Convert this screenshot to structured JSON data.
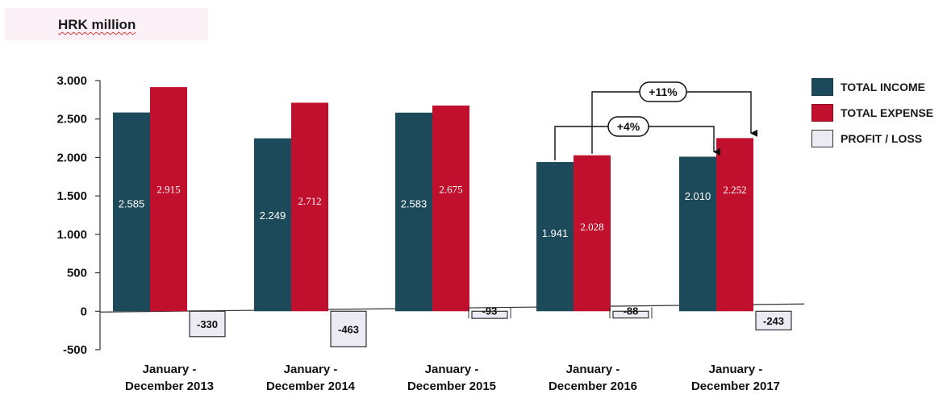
{
  "unit_label": "HRK million",
  "legend": [
    {
      "label": "TOTAL INCOME",
      "color": "#1d4a5a"
    },
    {
      "label": "TOTAL EXPENSE",
      "color": "#c0102e"
    },
    {
      "label": "PROFIT / LOSS",
      "color": "#ecebf3"
    }
  ],
  "annotations": [
    {
      "text": "+4%",
      "from_category": 3,
      "to_category": 4,
      "series": "TOTAL INCOME"
    },
    {
      "text": "+11%",
      "from_category": 3,
      "to_category": 4,
      "series": "TOTAL EXPENSE"
    }
  ],
  "chart_data": {
    "type": "bar",
    "categories": [
      [
        "January -",
        "December 2013"
      ],
      [
        "January -",
        "December 2014"
      ],
      [
        "January -",
        "December 2015"
      ],
      [
        "January -",
        "December 2016"
      ],
      [
        "January -",
        "December 2017"
      ]
    ],
    "series": [
      {
        "name": "TOTAL INCOME",
        "values": [
          2585,
          2249,
          2583,
          1941,
          2010
        ],
        "labels": [
          "2.585",
          "2.249",
          "2.583",
          "1.941",
          "2.010"
        ]
      },
      {
        "name": "TOTAL EXPENSE",
        "values": [
          2915,
          2712,
          2675,
          2028,
          2252
        ],
        "labels": [
          "2.915",
          "2.712",
          "2.675",
          "2.028",
          "2.252"
        ]
      },
      {
        "name": "PROFIT / LOSS",
        "values": [
          -330,
          -463,
          -93,
          -88,
          -243
        ],
        "labels": [
          "-330",
          "-463",
          "-93",
          "-88",
          "-243"
        ]
      }
    ],
    "yticks": [
      3000,
      2500,
      2000,
      1500,
      1000,
      500,
      0,
      -500
    ],
    "ytick_labels": [
      "3.000",
      "2.500",
      "2.000",
      "1.500",
      "1.000",
      "500",
      "0",
      "-500"
    ],
    "ylim": [
      -500,
      3000
    ],
    "grid": false,
    "legend_position": "right"
  }
}
